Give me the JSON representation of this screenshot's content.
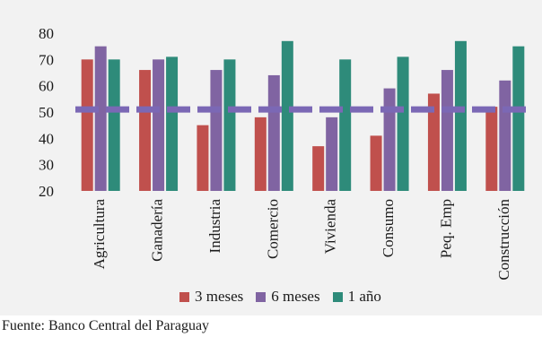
{
  "chart_data": {
    "type": "bar",
    "categories": [
      "Agricultura",
      "Ganadería",
      "Industria",
      "Comercio",
      "Vivienda",
      "Consumo",
      "Peq. Emp",
      "Construcción"
    ],
    "series": [
      {
        "name": "3 meses",
        "color": "#c0504d",
        "values": [
          70,
          66,
          45,
          48,
          37,
          41,
          57,
          52
        ]
      },
      {
        "name": "6 meses",
        "color": "#8064a2",
        "values": [
          75,
          70,
          66,
          64,
          48,
          59,
          66,
          62
        ]
      },
      {
        "name": "1 año",
        "color": "#2e8b7a",
        "values": [
          70,
          71,
          70,
          77,
          70,
          71,
          77,
          75
        ]
      }
    ],
    "reference_line": {
      "value": 51,
      "color": "#7b68b5",
      "style": "dashed"
    },
    "ylim": [
      20,
      80
    ],
    "yticks": [
      20,
      30,
      40,
      50,
      60,
      70,
      80
    ],
    "legend_position": "bottom",
    "grid": false
  },
  "source_note": "Fuente: Banco Central del Paraguay"
}
